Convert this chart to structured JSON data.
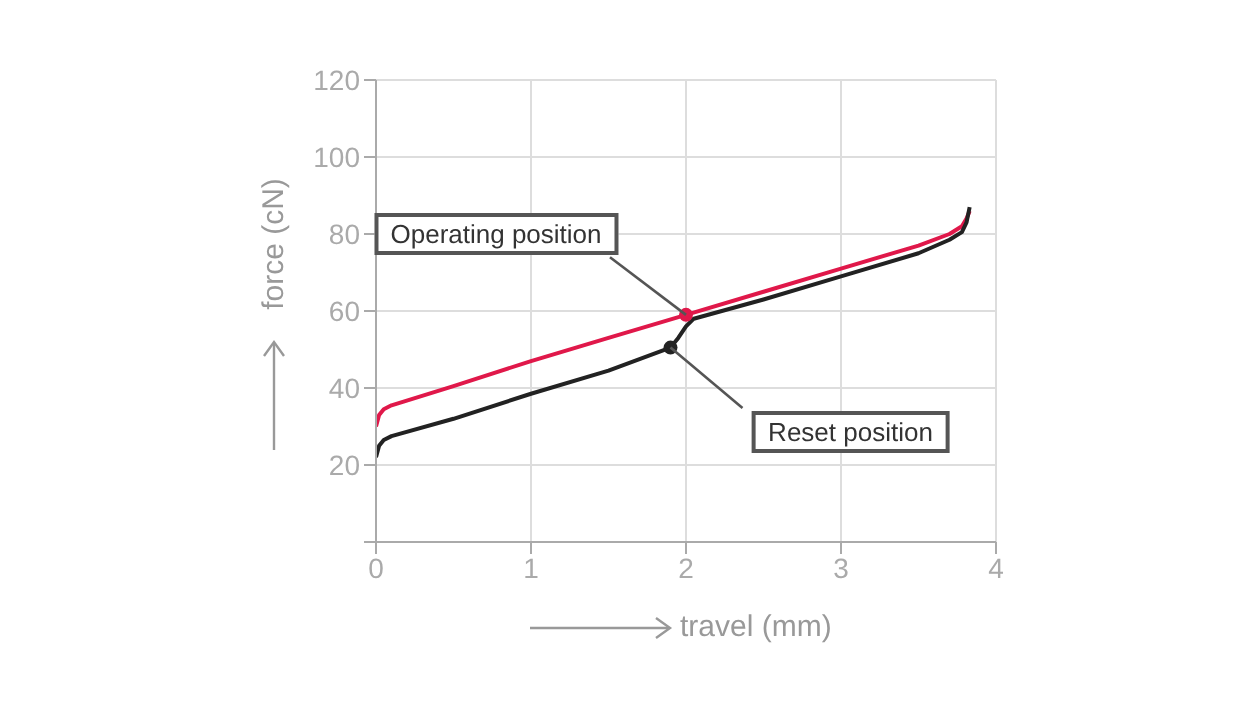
{
  "chart_data": {
    "type": "line",
    "xlabel": "travel (mm)",
    "ylabel": "force (cN)",
    "xlim": [
      0,
      4
    ],
    "ylim": [
      0,
      120
    ],
    "xticks": [
      0,
      1,
      2,
      3,
      4
    ],
    "yticks": [
      {
        "value": 0,
        "label": null
      },
      20,
      40,
      60,
      80,
      100,
      120
    ],
    "grid": true,
    "marker": "none",
    "line_style": "solid",
    "series": [
      {
        "color": "#e0184a",
        "x": [
          0,
          0.02,
          0.05,
          0.1,
          0.5,
          1,
          1.5,
          2,
          2.5,
          3,
          3.5,
          3.7,
          3.78,
          3.81,
          3.83
        ],
        "values": [
          30,
          33,
          34.5,
          35.5,
          40.5,
          47,
          53,
          59,
          65,
          71,
          77,
          80,
          82,
          84,
          86
        ]
      },
      {
        "color": "#222222",
        "x": [
          0,
          0.02,
          0.05,
          0.1,
          0.5,
          1,
          1.5,
          1.9,
          1.95,
          2,
          2.05,
          2.5,
          3,
          3.5,
          3.7,
          3.78,
          3.81,
          3.83
        ],
        "values": [
          22,
          25,
          26.5,
          27.5,
          32,
          38.5,
          44.5,
          50.5,
          53,
          56,
          58,
          63,
          69,
          75,
          78.5,
          80.5,
          83,
          87
        ]
      }
    ],
    "annotations": [
      {
        "text": "Operating position",
        "x": 2,
        "y": 59
      },
      {
        "text": "Reset position",
        "x": 1.9,
        "y": 50.5
      }
    ]
  }
}
